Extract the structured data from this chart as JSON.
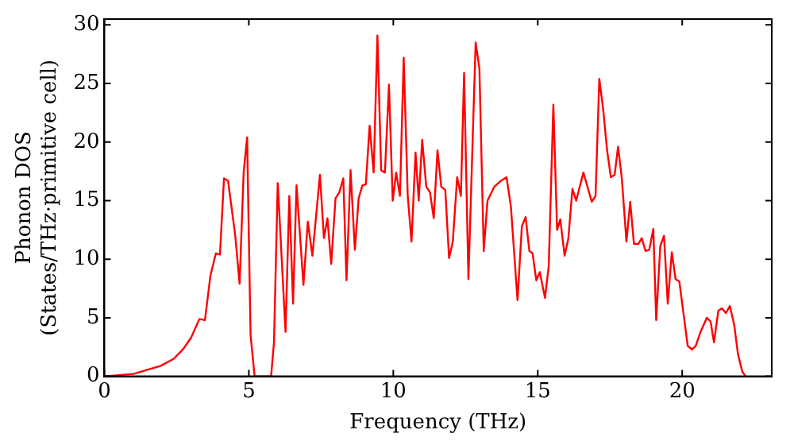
{
  "chart_data": {
    "type": "line",
    "xlabel": "Frequency (THz)",
    "ylabel": "Phonon DOS\n(States/THz·primitive cell)",
    "xlim": [
      0,
      23.1
    ],
    "ylim": [
      0,
      30.5
    ],
    "xticks": [
      0,
      5,
      10,
      15,
      20
    ],
    "yticks": [
      0,
      5,
      10,
      15,
      20,
      25,
      30
    ],
    "grid": false,
    "legend": false,
    "marker": "none",
    "line_style": "solid",
    "series": [
      {
        "color": "#ff0000",
        "x": [
          0,
          1.0,
          1.95,
          2.4,
          2.72,
          3.0,
          3.29,
          3.48,
          3.67,
          3.86,
          4.0,
          4.14,
          4.28,
          4.53,
          4.68,
          4.82,
          4.94,
          5.06,
          5.2,
          5.77,
          5.87,
          6.0,
          6.27,
          6.4,
          6.53,
          6.65,
          6.89,
          7.04,
          7.2,
          7.46,
          7.6,
          7.72,
          7.85,
          8.0,
          8.13,
          8.27,
          8.38,
          8.52,
          8.67,
          8.8,
          8.93,
          9.05,
          9.18,
          9.32,
          9.45,
          9.58,
          9.71,
          9.85,
          9.98,
          10.1,
          10.23,
          10.36,
          10.5,
          10.63,
          10.77,
          10.88,
          11.0,
          11.14,
          11.27,
          11.4,
          11.53,
          11.66,
          11.8,
          11.93,
          12.06,
          12.21,
          12.34,
          12.45,
          12.6,
          12.85,
          12.98,
          13.13,
          13.26,
          13.5,
          13.73,
          13.92,
          14.07,
          14.3,
          14.45,
          14.58,
          14.71,
          14.82,
          14.95,
          15.07,
          15.25,
          15.38,
          15.54,
          15.67,
          15.78,
          15.93,
          16.06,
          16.2,
          16.33,
          16.58,
          16.87,
          17.0,
          17.13,
          17.26,
          17.4,
          17.53,
          17.66,
          17.78,
          17.91,
          18.07,
          18.2,
          18.33,
          18.48,
          18.6,
          18.73,
          18.86,
          19.0,
          19.1,
          19.24,
          19.37,
          19.5,
          19.64,
          19.77,
          19.9,
          20.19,
          20.34,
          20.47,
          20.62,
          20.85,
          20.98,
          21.1,
          21.25,
          21.38,
          21.51,
          21.65,
          21.8,
          21.93,
          22.08,
          22.2
        ],
        "values": [
          0,
          0.2,
          0.9,
          1.5,
          2.3,
          3.3,
          4.9,
          4.8,
          8.6,
          10.5,
          10.4,
          16.9,
          16.7,
          12.0,
          7.9,
          17.4,
          20.4,
          3.5,
          0,
          0,
          2.9,
          16.5,
          3.8,
          15.4,
          6.2,
          16.3,
          7.8,
          13.2,
          10.3,
          17.2,
          11.8,
          13.5,
          9.6,
          15.2,
          15.7,
          16.9,
          8.2,
          17.6,
          10.8,
          15.2,
          16.3,
          16.4,
          21.4,
          17.4,
          29.1,
          17.6,
          17.4,
          24.9,
          15.0,
          17.4,
          15.4,
          27.2,
          15.4,
          11.5,
          19.1,
          15.0,
          20.2,
          16.2,
          15.7,
          13.5,
          19.3,
          16.2,
          15.9,
          10.1,
          11.5,
          17.0,
          15.4,
          25.9,
          8.3,
          28.5,
          26.3,
          10.7,
          15.0,
          16.2,
          16.7,
          17.0,
          14.5,
          6.5,
          12.8,
          13.6,
          10.7,
          10.5,
          8.2,
          8.9,
          6.7,
          9.4,
          23.2,
          12.5,
          13.4,
          10.3,
          11.8,
          16.0,
          15.0,
          17.4,
          14.9,
          15.4,
          25.4,
          22.9,
          19.3,
          17.0,
          17.2,
          19.6,
          16.9,
          11.5,
          14.9,
          11.3,
          11.3,
          11.8,
          10.7,
          10.8,
          12.6,
          4.8,
          11.1,
          12.0,
          6.2,
          10.6,
          8.3,
          8.1,
          2.6,
          2.3,
          2.6,
          3.7,
          5.0,
          4.7,
          2.9,
          5.6,
          5.8,
          5.4,
          6.0,
          4.4,
          1.9,
          0.4,
          0
        ]
      }
    ]
  }
}
